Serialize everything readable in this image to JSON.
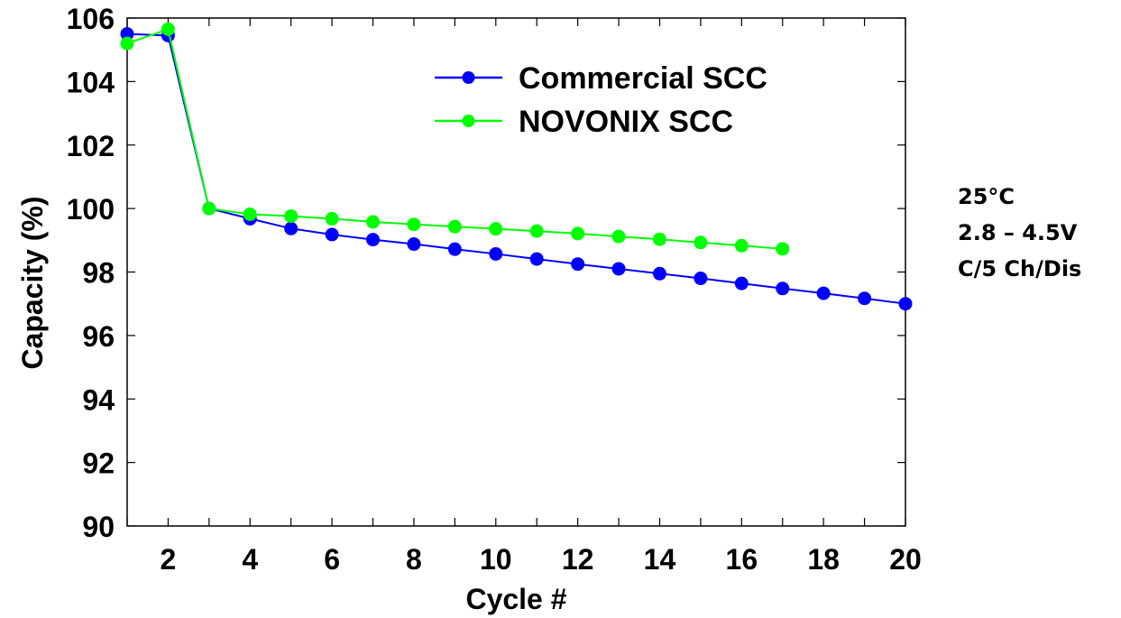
{
  "chart_data": {
    "type": "line",
    "title": "",
    "xlabel": "Cycle #",
    "ylabel": "Capacity (%)",
    "xlim": [
      1,
      20
    ],
    "ylim": [
      90,
      106
    ],
    "xticks": [
      2,
      4,
      6,
      8,
      10,
      12,
      14,
      16,
      18,
      20
    ],
    "yticks": [
      90,
      92,
      94,
      96,
      98,
      100,
      102,
      104,
      106
    ],
    "grid": false,
    "legend_position": "top-center",
    "series": [
      {
        "name": "Commercial SCC",
        "color": "#0000ff",
        "x": [
          1,
          2,
          3,
          4,
          5,
          6,
          7,
          8,
          9,
          10,
          11,
          12,
          13,
          14,
          15,
          16,
          17,
          18,
          19,
          20
        ],
        "y": [
          105.5,
          105.45,
          100.0,
          99.68,
          99.37,
          99.18,
          99.02,
          98.88,
          98.72,
          98.57,
          98.41,
          98.25,
          98.1,
          97.95,
          97.8,
          97.64,
          97.48,
          97.33,
          97.17,
          97.0
        ]
      },
      {
        "name": "NOVONIX SCC",
        "color": "#00ff00",
        "x": [
          1,
          2,
          3,
          4,
          5,
          6,
          7,
          8,
          9,
          10,
          11,
          12,
          13,
          14,
          15,
          16,
          17
        ],
        "y": [
          105.2,
          105.65,
          100.0,
          99.82,
          99.76,
          99.68,
          99.58,
          99.5,
          99.43,
          99.36,
          99.29,
          99.21,
          99.12,
          99.03,
          98.93,
          98.83,
          98.73
        ]
      }
    ]
  },
  "conditions": [
    "25°C",
    "2.8 – 4.5V",
    "C/5 Ch/Dis"
  ]
}
